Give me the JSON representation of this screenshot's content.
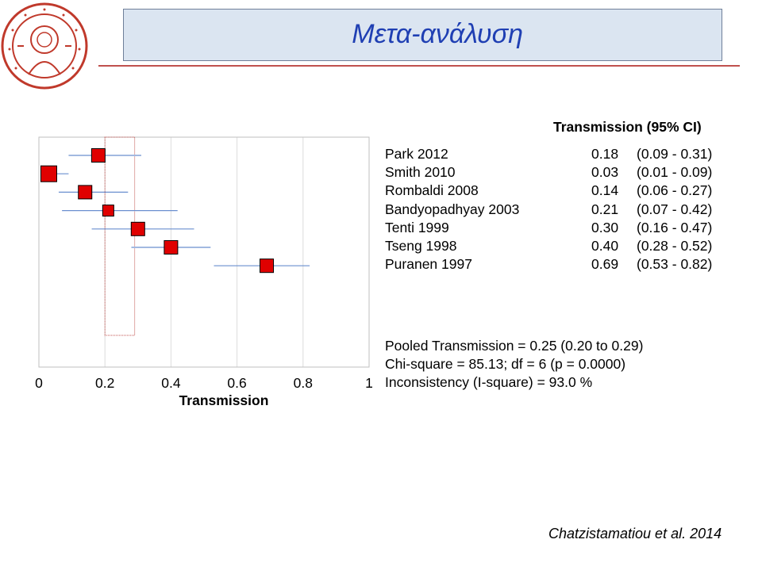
{
  "slide": {
    "title": "Μετα-ανάλυση",
    "citation": "Chatzistamatiou et al. 2014"
  },
  "colors": {
    "title_text": "#1f3fb3",
    "title_box": "#dbe5f1",
    "accent_rule": "#c0504d",
    "marker": "#e00000",
    "ci_line": "#6a8fcf",
    "pooled": "#c0504d"
  },
  "chart_data": {
    "type": "forest",
    "xlabel": "Transmission",
    "xlim": [
      0,
      1
    ],
    "x_ticks": [
      "0",
      "0.2",
      "0.4",
      "0.6",
      "0.8",
      "1"
    ],
    "x_tick_values": [
      0,
      0.2,
      0.4,
      0.6,
      0.8,
      1
    ],
    "column_header": "Transmission (95% CI)",
    "studies": [
      {
        "name": "Park 2012",
        "est": 0.18,
        "lo": 0.09,
        "hi": 0.31,
        "est_label": "0.18",
        "ci_label": "(0.09 - 0.31)"
      },
      {
        "name": "Smith 2010",
        "est": 0.03,
        "lo": 0.01,
        "hi": 0.09,
        "est_label": "0.03",
        "ci_label": "(0.01 - 0.09)"
      },
      {
        "name": "Rombaldi 2008",
        "est": 0.14,
        "lo": 0.06,
        "hi": 0.27,
        "est_label": "0.14",
        "ci_label": "(0.06 - 0.27)"
      },
      {
        "name": "Bandyopadhyay 2003",
        "est": 0.21,
        "lo": 0.07,
        "hi": 0.42,
        "est_label": "0.21",
        "ci_label": "(0.07 - 0.42)"
      },
      {
        "name": "Tenti 1999",
        "est": 0.3,
        "lo": 0.16,
        "hi": 0.47,
        "est_label": "0.30",
        "ci_label": "(0.16 - 0.47)"
      },
      {
        "name": "Tseng 1998",
        "est": 0.4,
        "lo": 0.28,
        "hi": 0.52,
        "est_label": "0.40",
        "ci_label": "(0.28 - 0.52)"
      },
      {
        "name": "Puranen 1997",
        "est": 0.69,
        "lo": 0.53,
        "hi": 0.82,
        "est_label": "0.69",
        "ci_label": "(0.53 - 0.82)"
      }
    ],
    "pooled": {
      "est": 0.25,
      "lo": 0.2,
      "hi": 0.29
    },
    "stats_lines": [
      "Pooled Transmission = 0.25 (0.20 to 0.29)",
      "Chi-square = 85.13; df =  6 (p = 0.0000)",
      "Inconsistency (I-square) = 93.0 %"
    ]
  }
}
